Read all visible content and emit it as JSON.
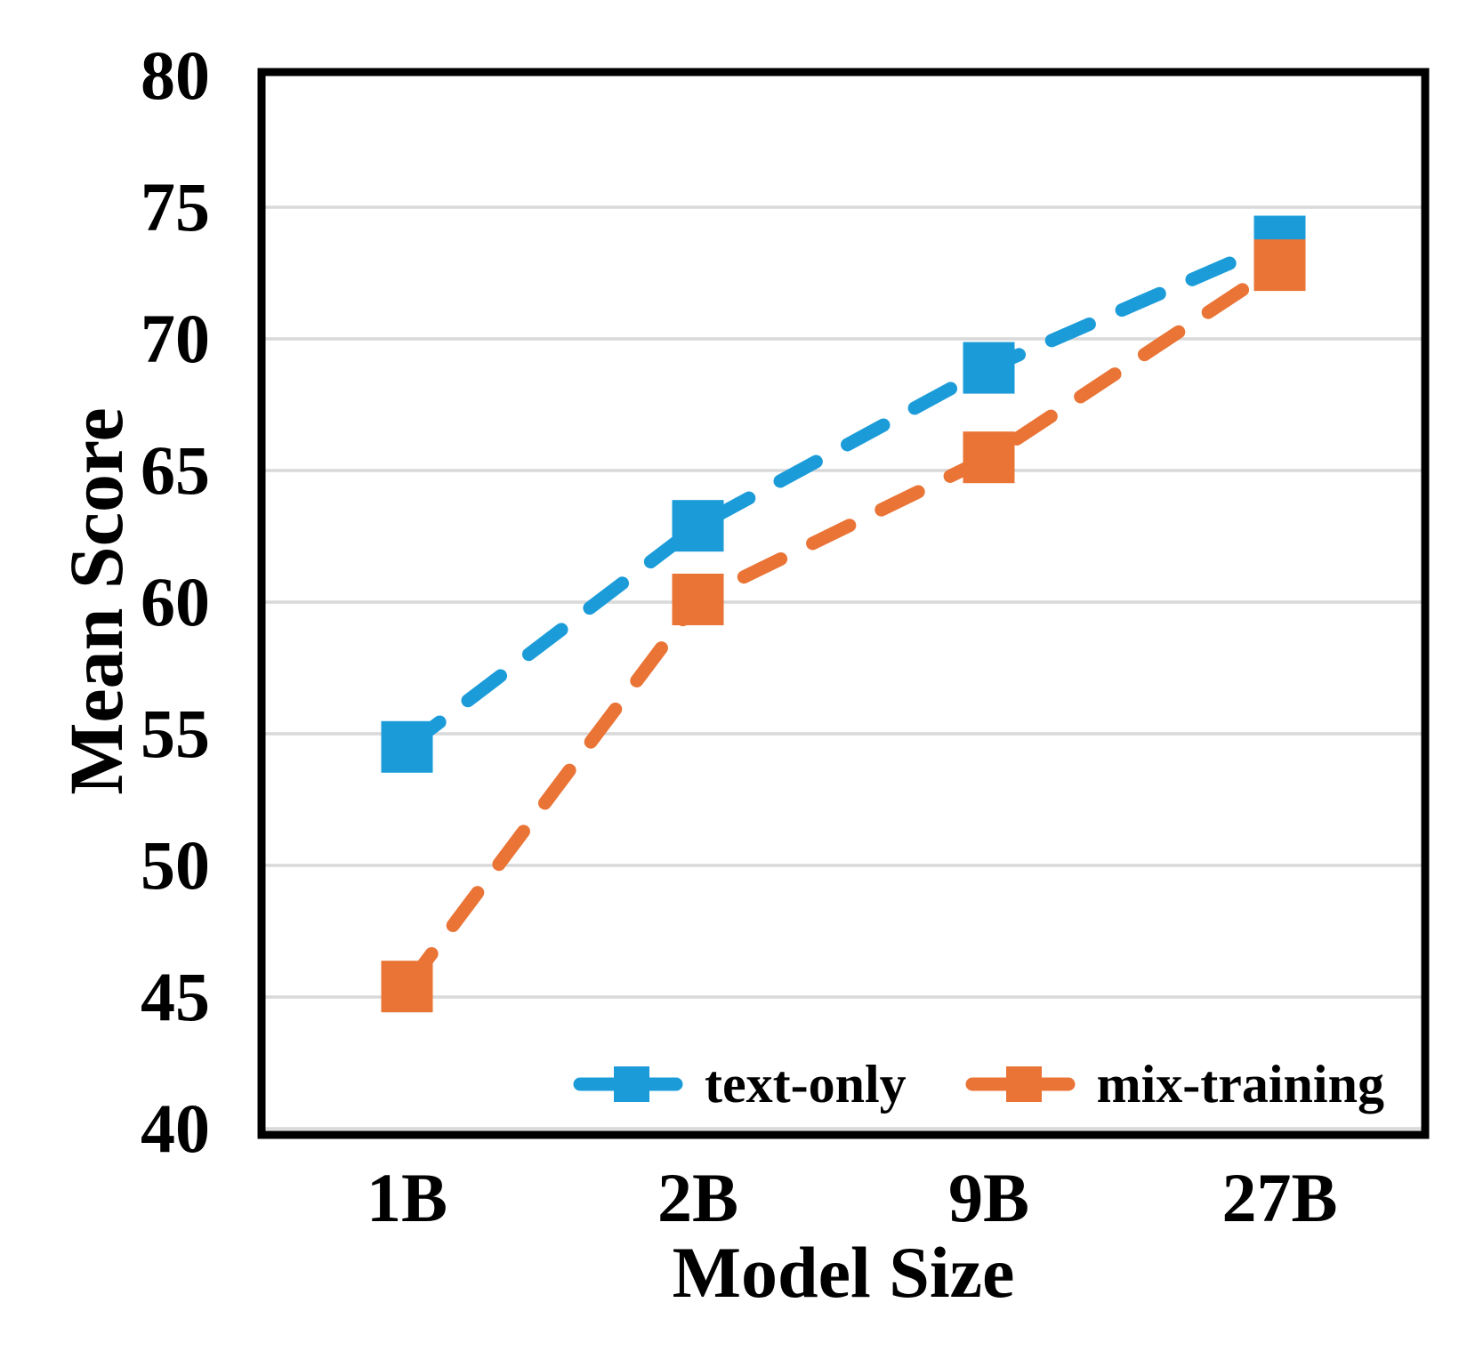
{
  "chart_data": {
    "type": "line",
    "title": "",
    "xlabel": "Model Size",
    "ylabel": "Mean Score",
    "categories": [
      "1B",
      "2B",
      "9B",
      "27B"
    ],
    "series": [
      {
        "name": "text-only",
        "color": "#1B9CD9",
        "line_style": "dashed",
        "marker": "square",
        "values": [
          54.5,
          62.9,
          68.9,
          73.7
        ]
      },
      {
        "name": "mix-training",
        "color": "#E97436",
        "line_style": "dashed",
        "marker": "square",
        "values": [
          45.4,
          60.1,
          65.5,
          72.8
        ]
      }
    ],
    "ylim": [
      40,
      80
    ],
    "yticks": [
      40,
      45,
      50,
      55,
      60,
      65,
      70,
      75,
      80
    ],
    "grid": "horizontal",
    "gridline_color": "#D9D9D9",
    "axis_color": "#000000",
    "legend_position": "bottom-inside"
  }
}
